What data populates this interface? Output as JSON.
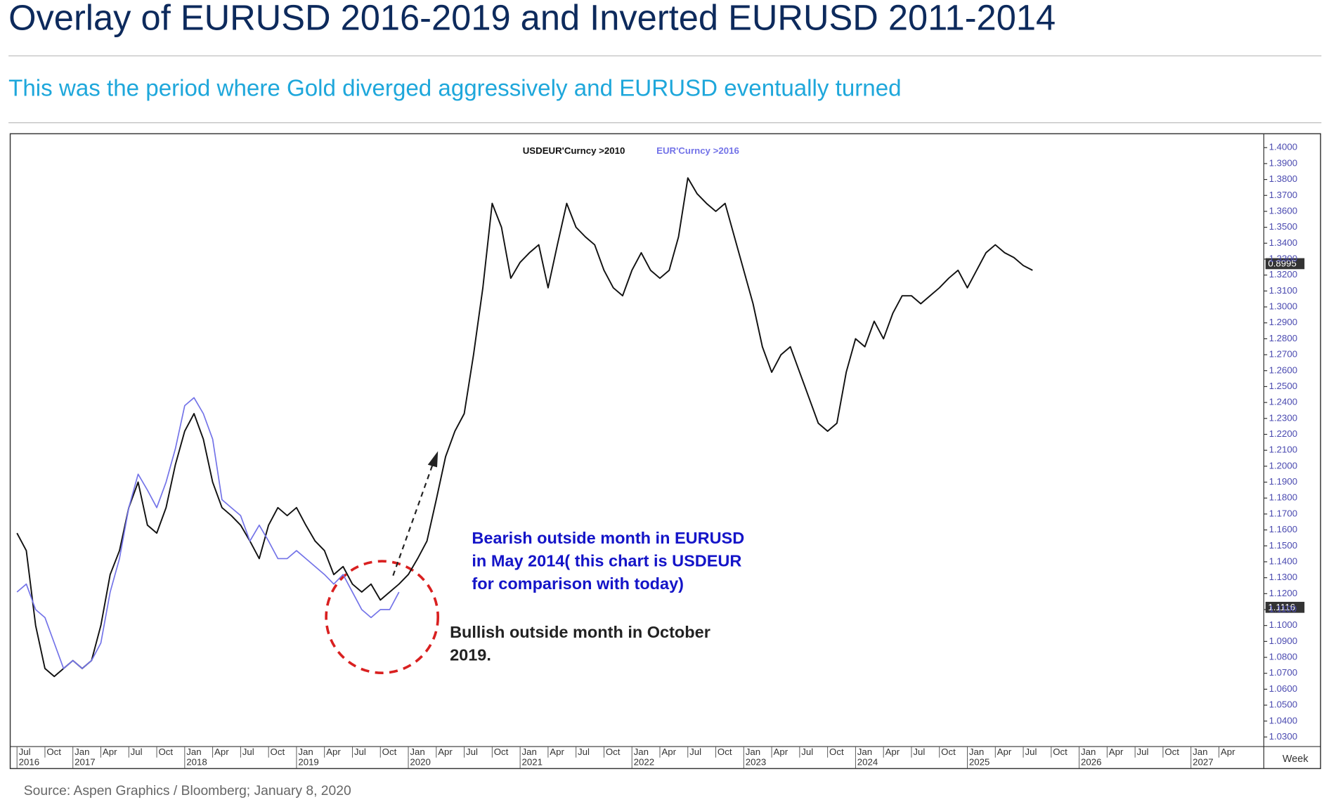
{
  "chart_data": {
    "type": "line",
    "title": "Overlay of EURUSD 2016-2019 and Inverted EURUSD 2011-2014",
    "subtitle": "This was the period where Gold diverged aggressively and EURUSD eventually turned",
    "source": "Source: Aspen Graphics / Bloomberg; January 8, 2020",
    "annotations": [
      {
        "color": "#1414c8",
        "lines": [
          "Bearish outside month in EURUSD",
          "in May 2014( this chart is USDEUR",
          "for comparison with today)"
        ]
      },
      {
        "color": "#222222",
        "lines": [
          "Bullish outside month in October",
          "2019."
        ]
      }
    ],
    "price_tags": [
      "0.8995",
      "1.1116"
    ],
    "frequency_label": "Week",
    "grid": false,
    "xlim": [
      "2016-06",
      "2027-09"
    ],
    "ylim": [
      1.024,
      1.405
    ],
    "yticks": [
      {
        "value": 1.03,
        "label": "1.0300"
      },
      {
        "value": 1.04,
        "label": "1.0400"
      },
      {
        "value": 1.05,
        "label": "1.0500"
      },
      {
        "value": 1.06,
        "label": "1.0600"
      },
      {
        "value": 1.07,
        "label": "1.0700"
      },
      {
        "value": 1.08,
        "label": "1.0800"
      },
      {
        "value": 1.09,
        "label": "1.0900"
      },
      {
        "value": 1.1,
        "label": "1.1000"
      },
      {
        "value": 1.11,
        "label": "1.1100"
      },
      {
        "value": 1.12,
        "label": "1.1200"
      },
      {
        "value": 1.13,
        "label": "1.1300"
      },
      {
        "value": 1.14,
        "label": "1.1400"
      },
      {
        "value": 1.15,
        "label": "1.1500"
      },
      {
        "value": 1.16,
        "label": "1.1600"
      },
      {
        "value": 1.17,
        "label": "1.1700"
      },
      {
        "value": 1.18,
        "label": "1.1800"
      },
      {
        "value": 1.19,
        "label": "1.1900"
      },
      {
        "value": 1.2,
        "label": "1.2000"
      },
      {
        "value": 1.21,
        "label": "1.2100"
      },
      {
        "value": 1.22,
        "label": "1.2200"
      },
      {
        "value": 1.23,
        "label": "1.2300"
      },
      {
        "value": 1.24,
        "label": "1.2400"
      },
      {
        "value": 1.25,
        "label": "1.2500"
      },
      {
        "value": 1.26,
        "label": "1.2600"
      },
      {
        "value": 1.27,
        "label": "1.2700"
      },
      {
        "value": 1.28,
        "label": "1.2800"
      },
      {
        "value": 1.29,
        "label": "1.2900"
      },
      {
        "value": 1.3,
        "label": "1.3000"
      },
      {
        "value": 1.31,
        "label": "1.3100"
      },
      {
        "value": 1.32,
        "label": "1.3200"
      },
      {
        "value": 1.33,
        "label": "1.3300"
      },
      {
        "value": 1.34,
        "label": "1.3400"
      },
      {
        "value": 1.35,
        "label": "1.3500"
      },
      {
        "value": 1.36,
        "label": "1.3600"
      },
      {
        "value": 1.37,
        "label": "1.3700"
      },
      {
        "value": 1.38,
        "label": "1.3800"
      },
      {
        "value": 1.39,
        "label": "1.3900"
      },
      {
        "value": 1.4,
        "label": "1.4000"
      }
    ],
    "xticks": [
      {
        "value": "2016-07",
        "label": "Jul"
      },
      {
        "value": "2016-10",
        "label": "Oct"
      },
      {
        "value": "2017-01",
        "label": "Jan"
      },
      {
        "value": "2017-04",
        "label": "Apr"
      },
      {
        "value": "2017-07",
        "label": "Jul"
      },
      {
        "value": "2017-10",
        "label": "Oct"
      },
      {
        "value": "2018-01",
        "label": "Jan"
      },
      {
        "value": "2018-04",
        "label": "Apr"
      },
      {
        "value": "2018-07",
        "label": "Jul"
      },
      {
        "value": "2018-10",
        "label": "Oct"
      },
      {
        "value": "2019-01",
        "label": "Jan"
      },
      {
        "value": "2019-04",
        "label": "Apr"
      },
      {
        "value": "2019-07",
        "label": "Jul"
      },
      {
        "value": "2019-10",
        "label": "Oct"
      },
      {
        "value": "2020-01",
        "label": "Jan"
      },
      {
        "value": "2020-04",
        "label": "Apr"
      },
      {
        "value": "2020-07",
        "label": "Jul"
      },
      {
        "value": "2020-10",
        "label": "Oct"
      },
      {
        "value": "2021-01",
        "label": "Jan"
      },
      {
        "value": "2021-04",
        "label": "Apr"
      },
      {
        "value": "2021-07",
        "label": "Jul"
      },
      {
        "value": "2021-10",
        "label": "Oct"
      },
      {
        "value": "2022-01",
        "label": "Jan"
      },
      {
        "value": "2022-04",
        "label": "Apr"
      },
      {
        "value": "2022-07",
        "label": "Jul"
      },
      {
        "value": "2022-10",
        "label": "Oct"
      },
      {
        "value": "2023-01",
        "label": "Jan"
      },
      {
        "value": "2023-04",
        "label": "Apr"
      },
      {
        "value": "2023-07",
        "label": "Jul"
      },
      {
        "value": "2023-10",
        "label": "Oct"
      },
      {
        "value": "2024-01",
        "label": "Jan"
      },
      {
        "value": "2024-04",
        "label": "Apr"
      },
      {
        "value": "2024-07",
        "label": "Jul"
      },
      {
        "value": "2024-10",
        "label": "Oct"
      },
      {
        "value": "2025-01",
        "label": "Jan"
      },
      {
        "value": "2025-04",
        "label": "Apr"
      },
      {
        "value": "2025-07",
        "label": "Jul"
      },
      {
        "value": "2025-10",
        "label": "Oct"
      },
      {
        "value": "2026-01",
        "label": "Jan"
      },
      {
        "value": "2026-04",
        "label": "Apr"
      },
      {
        "value": "2026-07",
        "label": "Jul"
      },
      {
        "value": "2026-10",
        "label": "Oct"
      },
      {
        "value": "2027-01",
        "label": "Jan"
      },
      {
        "value": "2027-04",
        "label": "Apr"
      }
    ],
    "xticks_year": [
      {
        "value": "2016-07",
        "label": "2016"
      },
      {
        "value": "2017-01",
        "label": "2017"
      },
      {
        "value": "2018-01",
        "label": "2018"
      },
      {
        "value": "2019-01",
        "label": "2019"
      },
      {
        "value": "2020-01",
        "label": "2020"
      },
      {
        "value": "2021-01",
        "label": "2021"
      },
      {
        "value": "2022-01",
        "label": "2022"
      },
      {
        "value": "2023-01",
        "label": "2023"
      },
      {
        "value": "2024-01",
        "label": "2024"
      },
      {
        "value": "2025-01",
        "label": "2025"
      },
      {
        "value": "2026-01",
        "label": "2026"
      },
      {
        "value": "2027-01",
        "label": "2027"
      }
    ],
    "series": [
      {
        "name": "USDEUR'Curncy  >2010",
        "color": "#111111",
        "x": [
          "2016-07",
          "2016-08",
          "2016-09",
          "2016-10",
          "2016-11",
          "2016-12",
          "2017-01",
          "2017-02",
          "2017-03",
          "2017-04",
          "2017-05",
          "2017-06",
          "2017-07",
          "2017-08",
          "2017-09",
          "2017-10",
          "2017-11",
          "2017-12",
          "2018-01",
          "2018-02",
          "2018-03",
          "2018-04",
          "2018-05",
          "2018-06",
          "2018-07",
          "2018-08",
          "2018-09",
          "2018-10",
          "2018-11",
          "2018-12",
          "2019-01",
          "2019-02",
          "2019-03",
          "2019-04",
          "2019-05",
          "2019-06",
          "2019-07",
          "2019-08",
          "2019-09",
          "2019-10",
          "2019-11",
          "2019-12",
          "2020-01",
          "2020-02",
          "2020-03",
          "2020-04",
          "2020-05",
          "2020-06",
          "2020-07",
          "2020-08",
          "2020-09",
          "2020-10",
          "2020-11",
          "2020-12",
          "2021-01",
          "2021-02",
          "2021-03",
          "2021-04",
          "2021-05",
          "2021-06",
          "2021-07",
          "2021-08",
          "2021-09",
          "2021-10",
          "2021-11",
          "2021-12",
          "2022-01",
          "2022-02",
          "2022-03",
          "2022-04",
          "2022-05",
          "2022-06",
          "2022-07",
          "2022-08",
          "2022-09",
          "2022-10",
          "2022-11",
          "2022-12",
          "2023-01",
          "2023-02",
          "2023-03",
          "2023-04",
          "2023-05",
          "2023-06",
          "2023-07",
          "2023-08",
          "2023-09",
          "2023-10",
          "2023-11",
          "2023-12",
          "2024-01",
          "2024-02",
          "2024-03",
          "2024-04",
          "2024-05",
          "2024-06",
          "2024-07",
          "2024-08",
          "2024-09",
          "2024-10",
          "2024-11",
          "2024-12",
          "2025-01",
          "2025-02",
          "2025-03",
          "2025-04",
          "2025-05",
          "2025-06",
          "2025-07",
          "2025-08"
        ],
        "values": [
          1.158,
          1.147,
          1.1,
          1.073,
          1.068,
          1.073,
          1.078,
          1.073,
          1.078,
          1.1,
          1.132,
          1.147,
          1.174,
          1.19,
          1.163,
          1.158,
          1.174,
          1.201,
          1.222,
          1.233,
          1.217,
          1.19,
          1.174,
          1.169,
          1.163,
          1.153,
          1.142,
          1.163,
          1.174,
          1.169,
          1.174,
          1.163,
          1.153,
          1.147,
          1.132,
          1.137,
          1.126,
          1.121,
          1.126,
          1.116,
          1.121,
          1.126,
          1.132,
          1.142,
          1.153,
          1.179,
          1.206,
          1.222,
          1.233,
          1.27,
          1.312,
          1.365,
          1.35,
          1.318,
          1.328,
          1.334,
          1.339,
          1.312,
          1.339,
          1.365,
          1.35,
          1.344,
          1.339,
          1.323,
          1.312,
          1.307,
          1.323,
          1.334,
          1.323,
          1.318,
          1.323,
          1.344,
          1.381,
          1.371,
          1.365,
          1.36,
          1.365,
          1.344,
          1.323,
          1.302,
          1.275,
          1.259,
          1.27,
          1.275,
          1.259,
          1.243,
          1.227,
          1.222,
          1.227,
          1.259,
          1.28,
          1.275,
          1.291,
          1.28,
          1.296,
          1.307,
          1.307,
          1.302,
          1.307,
          1.312,
          1.318,
          1.323,
          1.312,
          1.323,
          1.334,
          1.339,
          1.334,
          1.331,
          1.326,
          1.323
        ]
      },
      {
        "name": "EUR'Curncy  >2016",
        "color": "#7373e8",
        "x": [
          "2016-07",
          "2016-08",
          "2016-09",
          "2016-10",
          "2016-11",
          "2016-12",
          "2017-01",
          "2017-02",
          "2017-03",
          "2017-04",
          "2017-05",
          "2017-06",
          "2017-07",
          "2017-08",
          "2017-09",
          "2017-10",
          "2017-11",
          "2017-12",
          "2018-01",
          "2018-02",
          "2018-03",
          "2018-04",
          "2018-05",
          "2018-06",
          "2018-07",
          "2018-08",
          "2018-09",
          "2018-10",
          "2018-11",
          "2018-12",
          "2019-01",
          "2019-02",
          "2019-03",
          "2019-04",
          "2019-05",
          "2019-06",
          "2019-07",
          "2019-08",
          "2019-09",
          "2019-10",
          "2019-11",
          "2019-12"
        ],
        "values": [
          1.121,
          1.126,
          1.11,
          1.105,
          1.089,
          1.073,
          1.078,
          1.073,
          1.078,
          1.089,
          1.121,
          1.142,
          1.174,
          1.195,
          1.185,
          1.174,
          1.19,
          1.211,
          1.238,
          1.243,
          1.233,
          1.217,
          1.179,
          1.174,
          1.169,
          1.153,
          1.163,
          1.153,
          1.142,
          1.142,
          1.147,
          1.142,
          1.137,
          1.132,
          1.126,
          1.132,
          1.121,
          1.11,
          1.105,
          1.11,
          1.11,
          1.121
        ]
      }
    ]
  }
}
